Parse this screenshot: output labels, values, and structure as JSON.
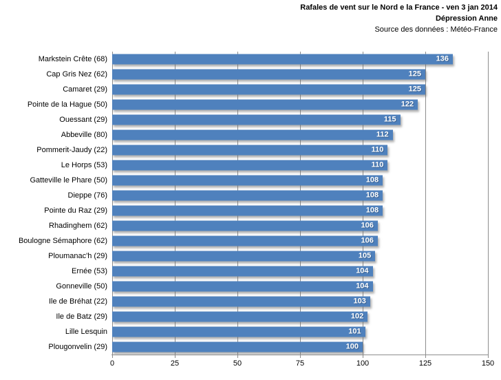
{
  "header": {
    "title": "Rafales de vent sur le Nord e la France - ven 3 jan 2014",
    "subtitle": "Dépression Anne",
    "source": "Source des données : Météo-France"
  },
  "chart_data": {
    "type": "bar",
    "orientation": "horizontal",
    "title": "Rafales de vent sur le Nord e la France - ven 3 jan 2014",
    "subtitle": "Dépression Anne",
    "source": "Source des données : Météo-France",
    "categories": [
      "Markstein Crête (68)",
      "Cap Gris Nez (62)",
      "Camaret (29)",
      "Pointe de la Hague (50)",
      "Ouessant (29)",
      "Abbeville (80)",
      "Pommerit-Jaudy (22)",
      "Le Horps (53)",
      "Gatteville le Phare (50)",
      "Dieppe (76)",
      "Pointe du Raz (29)",
      "Rhadinghem (62)",
      "Boulogne Sémaphore (62)",
      "Ploumanac'h (29)",
      "Ernée (53)",
      "Gonneville (50)",
      "Ile de Bréhat (22)",
      "Ile de Batz (29)",
      "Lille Lesquin",
      "Plougonvelin (29)"
    ],
    "values": [
      136,
      125,
      125,
      122,
      115,
      112,
      110,
      110,
      108,
      108,
      108,
      106,
      106,
      105,
      104,
      104,
      103,
      102,
      101,
      100
    ],
    "xlim": [
      0,
      150
    ],
    "x_ticks": [
      0,
      25,
      50,
      75,
      100,
      125,
      150
    ],
    "grid": "vertical-gridlines-on",
    "legend": "none",
    "value_labels_position": "inside-end"
  },
  "colors": {
    "bar": "#4f81bd",
    "gridline": "#8c8c8c",
    "axis": "#8c8c8c",
    "background": "#ffffff",
    "value_label_text": "#ffffff",
    "title_text": "#000000"
  }
}
